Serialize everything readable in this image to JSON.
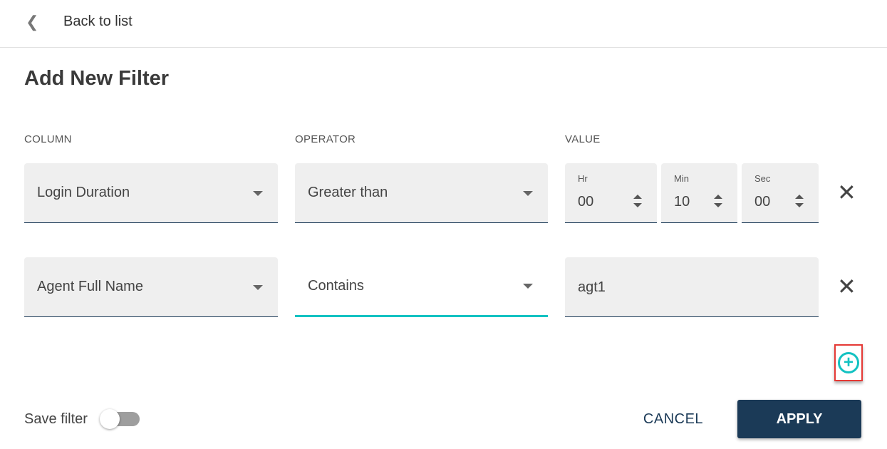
{
  "header": {
    "back_label": "Back to list",
    "back_icon": "chevron-left-icon"
  },
  "title": "Add New Filter",
  "columns": {
    "column": "COLUMN",
    "operator": "OPERATOR",
    "value": "VALUE"
  },
  "rows": [
    {
      "column": "Login Duration",
      "operator": "Greater than",
      "value": {
        "hr_label": "Hr",
        "hr": "00",
        "min_label": "Min",
        "min": "10",
        "sec_label": "Sec",
        "sec": "00"
      }
    },
    {
      "column": "Agent Full Name",
      "operator": "Contains",
      "value": "agt1"
    }
  ],
  "footer": {
    "save_filter_label": "Save filter",
    "save_filter_on": false,
    "cancel": "CANCEL",
    "apply": "APPLY"
  },
  "colors": {
    "accent": "#13c2c2",
    "primary": "#1b3a57",
    "highlight": "#e53935"
  }
}
